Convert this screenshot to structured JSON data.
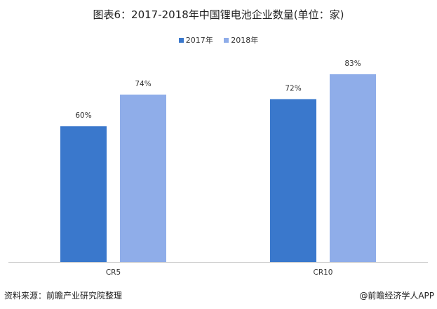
{
  "chart_data": {
    "type": "bar",
    "title": "图表6：2017-2018年中国锂电池企业数量(单位：家)",
    "categories": [
      "CR5",
      "CR10"
    ],
    "series": [
      {
        "name": "2017年",
        "values": [
          60,
          72
        ],
        "labels": [
          "60%",
          "72%"
        ],
        "color": "#3a78cc"
      },
      {
        "name": "2018年",
        "values": [
          74,
          83
        ],
        "labels": [
          "74%",
          "83%"
        ],
        "color": "#8fade9"
      }
    ],
    "xlabel": "",
    "ylabel": "",
    "ylim": [
      0,
      100
    ],
    "grid": false,
    "legend": "top-center"
  },
  "footer": {
    "source": "资料来源：前瞻产业研究院整理",
    "brand": "@前瞻经济学人APP"
  }
}
